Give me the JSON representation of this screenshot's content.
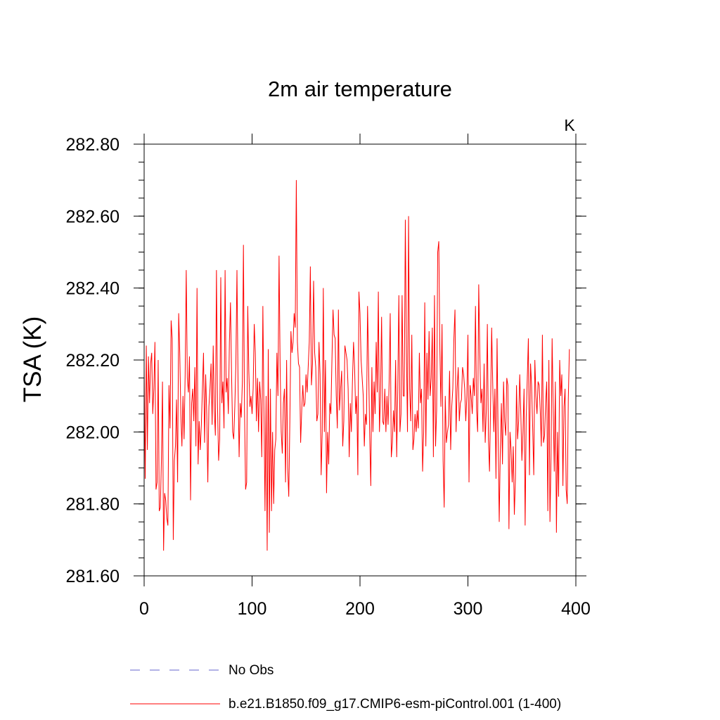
{
  "chart_data": {
    "type": "line",
    "title": "2m air temperature",
    "ylabel": "TSA  (K)",
    "units_label": "K",
    "xlim": [
      0,
      400
    ],
    "ylim": [
      281.6,
      282.8
    ],
    "x_ticks": [
      0,
      100,
      200,
      300,
      400
    ],
    "x_tick_labels": [
      "0",
      "100",
      "200",
      "300",
      "400"
    ],
    "y_ticks": [
      281.6,
      281.8,
      282.0,
      282.2,
      282.4,
      282.6,
      282.8
    ],
    "y_tick_labels": [
      "281.60",
      "281.80",
      "282.00",
      "282.20",
      "282.40",
      "282.60",
      "282.80"
    ],
    "colors": {
      "series": "#ff0000",
      "obs": "#6666cc"
    },
    "legend": [
      {
        "label": "No Obs",
        "style": "dashed"
      },
      {
        "label": "b.e21.B1850.f09_g17.CMIP6-esm-piControl.001 (1-400)",
        "style": "solid"
      }
    ],
    "series": [
      {
        "name": "b.e21.B1850.f09_g17.CMIP6-esm-piControl.001 (1-400)",
        "x_start": 0,
        "x_step": 1,
        "values": [
          282.18,
          281.87,
          282.24,
          281.95,
          282.21,
          282.08,
          282.19,
          282.22,
          282.05,
          282.12,
          282.25,
          281.84,
          281.86,
          282.2,
          281.78,
          281.79,
          281.92,
          282.14,
          281.67,
          281.83,
          281.81,
          281.76,
          281.74,
          282.13,
          282.01,
          282.31,
          282.26,
          281.7,
          281.92,
          281.96,
          282.09,
          281.86,
          282.33,
          282.22,
          282.05,
          281.96,
          282.1,
          281.98,
          282.16,
          282.45,
          282.15,
          282.11,
          282.21,
          281.81,
          282.08,
          282.12,
          282.03,
          282.18,
          281.96,
          282.4,
          281.91,
          282.03,
          281.95,
          282.02,
          282.12,
          282.22,
          281.97,
          282.16,
          282.05,
          281.86,
          282.07,
          282.12,
          282.19,
          282.02,
          282.24,
          282.06,
          281.99,
          282.45,
          282.07,
          281.92,
          281.98,
          282.43,
          282.08,
          282.14,
          282.01,
          282.45,
          282.11,
          282.15,
          282.05,
          282.25,
          282.36,
          282.16,
          282.0,
          281.98,
          282.07,
          282.19,
          282.45,
          282.14,
          281.93,
          282.08,
          282.04,
          282.14,
          282.52,
          282.06,
          281.84,
          281.86,
          282.35,
          282.17,
          282.07,
          282.1,
          282.05,
          282.12,
          282.3,
          282.22,
          282.03,
          282.15,
          282.0,
          282.14,
          282.09,
          281.93,
          282.35,
          282.06,
          281.78,
          282.1,
          281.67,
          282.23,
          281.72,
          282.12,
          281.78,
          282.0,
          281.8,
          281.95,
          281.98,
          282.22,
          282.1,
          282.49,
          282.18,
          282.0,
          281.94,
          282.08,
          282.12,
          281.86,
          282.2,
          281.9,
          281.82,
          282.03,
          282.28,
          282.22,
          282.25,
          282.33,
          282.29,
          282.7,
          282.25,
          282.19,
          282.18,
          281.97,
          282.06,
          282.13,
          282.07,
          282.08,
          282.16,
          282.11,
          282.18,
          282.25,
          282.46,
          282.13,
          282.19,
          282.42,
          282.22,
          282.18,
          282.03,
          282.05,
          282.25,
          282.16,
          281.88,
          282.0,
          282.4,
          282.0,
          282.2,
          281.83,
          282.0,
          281.91,
          282.08,
          282.05,
          282.2,
          282.34,
          282.27,
          282.26,
          282.1,
          282.01,
          282.34,
          282.06,
          282.12,
          282.17,
          281.96,
          282.03,
          282.24,
          282.22,
          282.2,
          282.12,
          281.93,
          282.08,
          282.0,
          282.14,
          282.25,
          282.18,
          282.05,
          282.1,
          281.88,
          282.39,
          282.33,
          282.2,
          282.15,
          282.1,
          281.96,
          282.05,
          282.02,
          282.35,
          282.18,
          281.99,
          281.85,
          282.18,
          282.0,
          282.14,
          282.05,
          282.25,
          282.11,
          282.39,
          282.0,
          282.1,
          282.32,
          282.03,
          282.02,
          282.12,
          282.0,
          282.1,
          282.02,
          282.14,
          282.33,
          281.93,
          281.97,
          282.06,
          282.0,
          282.2,
          281.93,
          282.12,
          282.38,
          282.0,
          282.05,
          282.38,
          282.1,
          282.1,
          282.59,
          282.23,
          282.0,
          282.6,
          282.12,
          282.03,
          282.27,
          281.95,
          281.98,
          282.05,
          282.0,
          282.06,
          282.01,
          282.22,
          282.08,
          282.12,
          281.89,
          282.0,
          282.36,
          281.96,
          282.22,
          282.09,
          282.28,
          282.1,
          282.15,
          282.29,
          281.93,
          282.38,
          281.96,
          282.06,
          282.5,
          282.53,
          282.23,
          282.07,
          282.3,
          281.92,
          281.79,
          282.1,
          281.97,
          282.0,
          282.02,
          282.17,
          281.95,
          282.07,
          282.12,
          282.26,
          282.34,
          282.0,
          282.12,
          282.18,
          282.03,
          282.08,
          282.09,
          282.18,
          282.16,
          282.12,
          282.03,
          282.1,
          282.27,
          281.86,
          282.13,
          282.1,
          282.05,
          282.15,
          282.1,
          282.35,
          282.06,
          282.0,
          282.41,
          282.22,
          282.08,
          282.12,
          282.0,
          282.19,
          281.97,
          282.06,
          282.3,
          281.98,
          281.89,
          282.08,
          282.29,
          282.13,
          282.0,
          282.12,
          281.87,
          282.26,
          281.98,
          281.75,
          281.95,
          282.08,
          281.91,
          282.14,
          282.03,
          281.99,
          282.15,
          282.13,
          281.73,
          282.0,
          281.95,
          281.86,
          281.96,
          281.77,
          281.87,
          282.13,
          281.98,
          282.03,
          282.16,
          282.05,
          281.92,
          282.0,
          282.12,
          281.74,
          282.04,
          282.15,
          282.26,
          281.88,
          282.19,
          282.13,
          282.01,
          281.88,
          282.2,
          282.1,
          282.05,
          282.14,
          282.13,
          282.06,
          281.96,
          282.27,
          281.97,
          281.99,
          282.08,
          282.14,
          281.78,
          282.2,
          281.75,
          281.93,
          282.26,
          282.07,
          281.89,
          282.14,
          281.72,
          282.0,
          281.82,
          282.2,
          282.1,
          282.16,
          281.85,
          282.07,
          282.12,
          281.84,
          281.8,
          282.09,
          282.23
        ]
      }
    ]
  }
}
